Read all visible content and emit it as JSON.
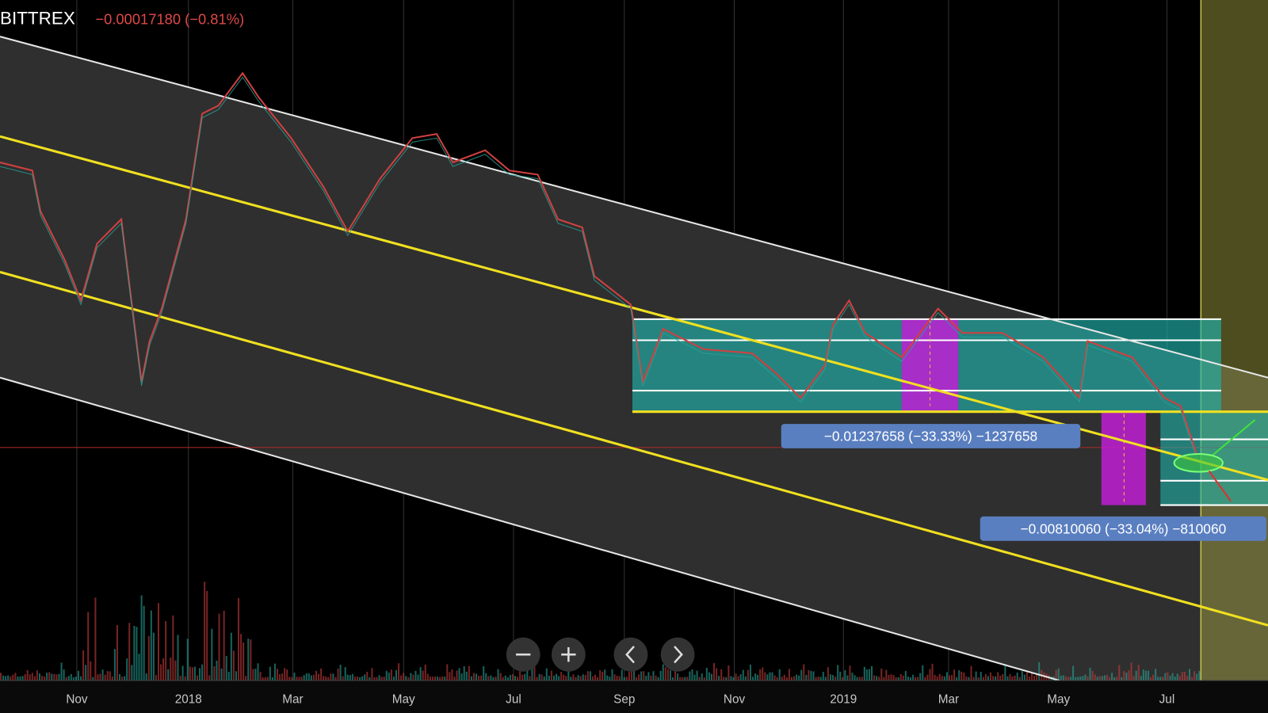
{
  "header": {
    "symbol": "BITTREX",
    "change": "−0.00017180 (−0.81%)"
  },
  "measurements": [
    "−0.01237658 (−33.33%) −1237658",
    "−0.00810060 (−33.04%) −810060"
  ],
  "x_axis_labels": [
    "Nov",
    "2018",
    "Mar",
    "May",
    "Jul",
    "Sep",
    "Nov",
    "2019",
    "Mar",
    "May",
    "Jul"
  ]
}
